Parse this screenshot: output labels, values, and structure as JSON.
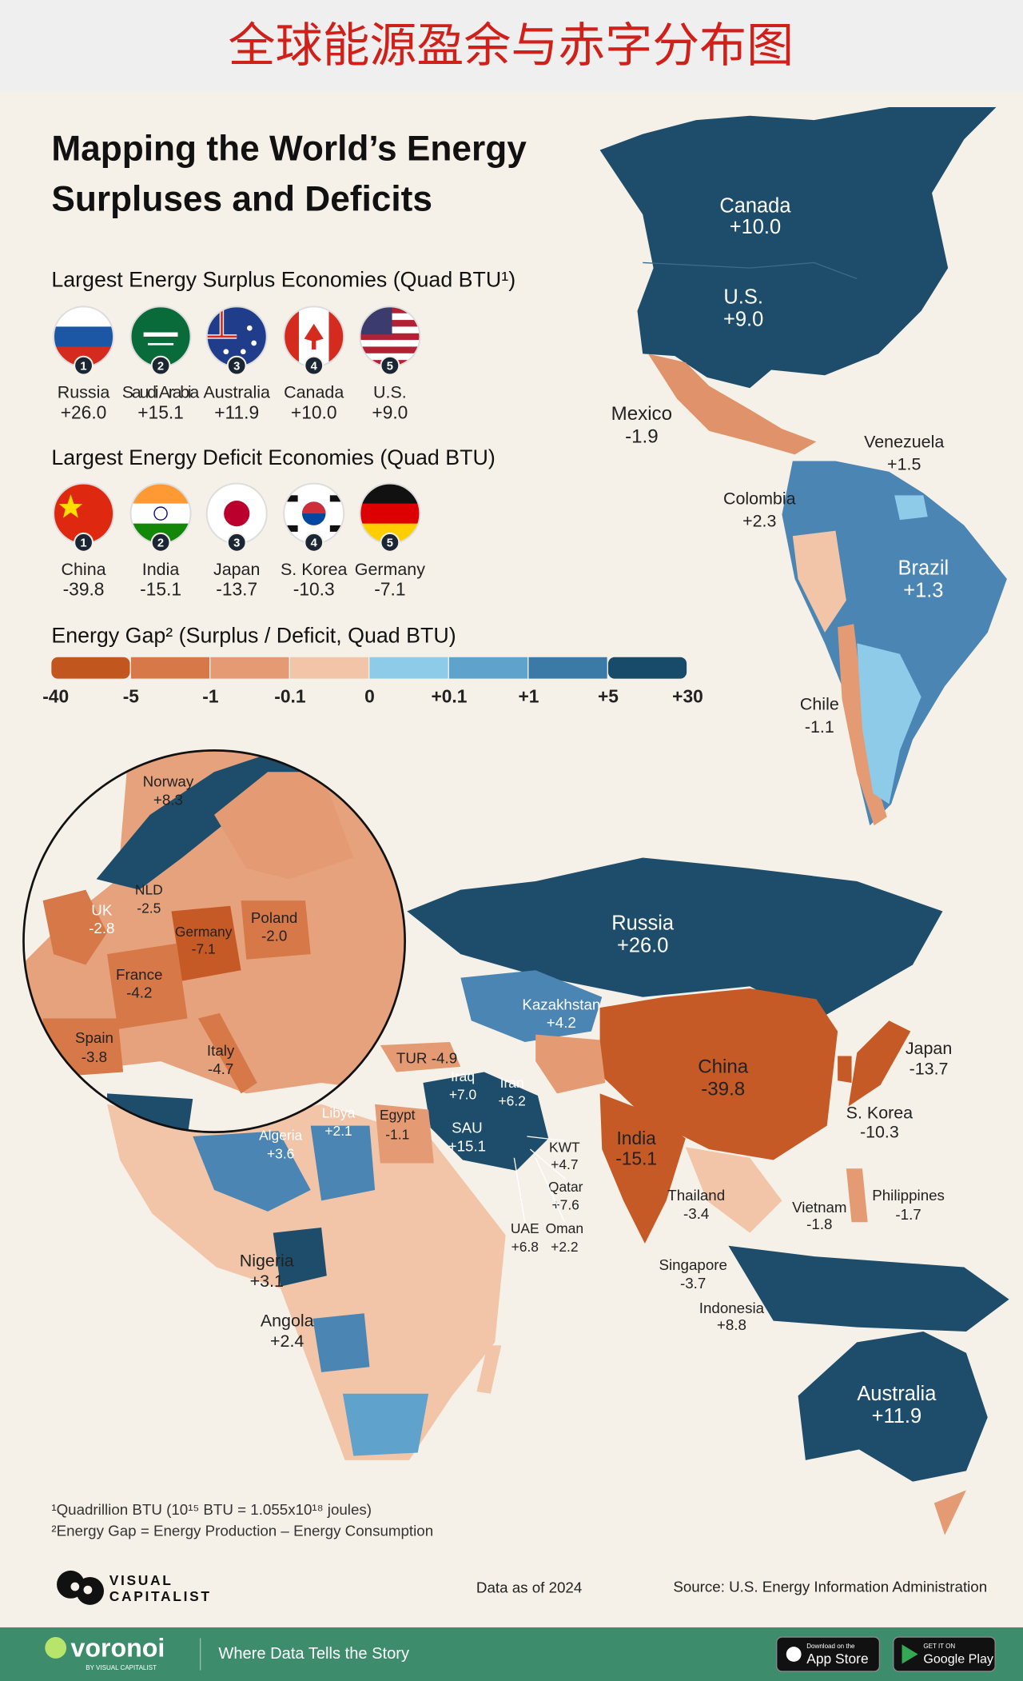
{
  "header": {
    "title": "全球能源盈余与赤字分布图"
  },
  "infographic": {
    "title_line1": "Mapping the World’s Energy",
    "title_line2": "Surpluses and Deficits",
    "surplus": {
      "heading": "Largest Energy Surplus Economies (Quad BTU¹)",
      "items": [
        {
          "rank": 1,
          "name": "Russia",
          "value": "+26.0"
        },
        {
          "rank": 2,
          "name": "Saudi Arabia",
          "value": "+15.1"
        },
        {
          "rank": 3,
          "name": "Australia",
          "value": "+11.9"
        },
        {
          "rank": 4,
          "name": "Canada",
          "value": "+10.0"
        },
        {
          "rank": 5,
          "name": "U.S.",
          "value": "+9.0"
        }
      ]
    },
    "deficit": {
      "heading": "Largest Energy Deficit Economies (Quad BTU)",
      "items": [
        {
          "rank": 1,
          "name": "China",
          "value": "-39.8"
        },
        {
          "rank": 2,
          "name": "India",
          "value": "-15.1"
        },
        {
          "rank": 3,
          "name": "Japan",
          "value": "-13.7"
        },
        {
          "rank": 4,
          "name": "S. Korea",
          "value": "-10.3"
        },
        {
          "rank": 5,
          "name": "Germany",
          "value": "-7.1"
        }
      ]
    },
    "legend": {
      "heading": "Energy Gap² (Surplus / Deficit, Quad BTU)",
      "ticks": [
        "-40",
        "-5",
        "-1",
        "-0.1",
        "0",
        "+0.1",
        "+1",
        "+5",
        "+30"
      ]
    },
    "map_labels": [
      {
        "name": "Canada",
        "value": "+10.0"
      },
      {
        "name": "U.S.",
        "value": "+9.0"
      },
      {
        "name": "Mexico",
        "value": "-1.9"
      },
      {
        "name": "Venezuela",
        "value": "+1.5"
      },
      {
        "name": "Colombia",
        "value": "+2.3"
      },
      {
        "name": "Brazil",
        "value": "+1.3"
      },
      {
        "name": "Chile",
        "value": "-1.1"
      },
      {
        "name": "Norway",
        "value": "+8.3"
      },
      {
        "name": "NLD",
        "value": "-2.5"
      },
      {
        "name": "UK",
        "value": "-2.8"
      },
      {
        "name": "Germany",
        "value": "-7.1"
      },
      {
        "name": "Poland",
        "value": "-2.0"
      },
      {
        "name": "France",
        "value": "-4.2"
      },
      {
        "name": "Spain",
        "value": "-3.8"
      },
      {
        "name": "Italy",
        "value": "-4.7"
      },
      {
        "name": "Russia",
        "value": "+26.0"
      },
      {
        "name": "Kazakhstan",
        "value": "+4.2"
      },
      {
        "name": "TUR",
        "value": "-4.9"
      },
      {
        "name": "Japan",
        "value": "-13.7"
      },
      {
        "name": "China",
        "value": "-39.8"
      },
      {
        "name": "S. Korea",
        "value": "-10.3"
      },
      {
        "name": "Iraq",
        "value": "+7.0"
      },
      {
        "name": "Iran",
        "value": "+6.2"
      },
      {
        "name": "Egypt",
        "value": "-1.1"
      },
      {
        "name": "Libya",
        "value": "+2.1"
      },
      {
        "name": "Algeria",
        "value": "+3.6"
      },
      {
        "name": "SAU",
        "value": "+15.1"
      },
      {
        "name": "KWT",
        "value": "+4.7"
      },
      {
        "name": "India",
        "value": "-15.1"
      },
      {
        "name": "Qatar",
        "value": "+7.6"
      },
      {
        "name": "Thailand",
        "value": "-3.4"
      },
      {
        "name": "Vietnam",
        "value": "-1.8"
      },
      {
        "name": "Philippines",
        "value": "-1.7"
      },
      {
        "name": "UAE",
        "value": "+6.8"
      },
      {
        "name": "Oman",
        "value": "+2.2"
      },
      {
        "name": "Nigeria",
        "value": "+3.1"
      },
      {
        "name": "Singapore",
        "value": "-3.7"
      },
      {
        "name": "Indonesia",
        "value": "+8.8"
      },
      {
        "name": "Angola",
        "value": "+2.4"
      },
      {
        "name": "Australia",
        "value": "+11.9"
      }
    ],
    "footnotes": [
      "¹Quadrillion BTU (10¹⁵ BTU = 1.055x10¹⁸ joules)",
      "²Energy Gap = Energy Production – Energy Consumption"
    ],
    "brand_line1": "VISUAL",
    "brand_line2": "CAPITALIST",
    "data_as_of": "Data as of 2024",
    "source": "Source: U.S. Energy Information Administration"
  },
  "footer": {
    "logo": "voronoi",
    "logo_sub": "BY VISUAL CAPITALIST",
    "tagline": "Where Data Tells the Story",
    "app_store_small": "Download on the",
    "app_store": "App Store",
    "google_small": "GET IT ON",
    "google": "Google Play"
  }
}
